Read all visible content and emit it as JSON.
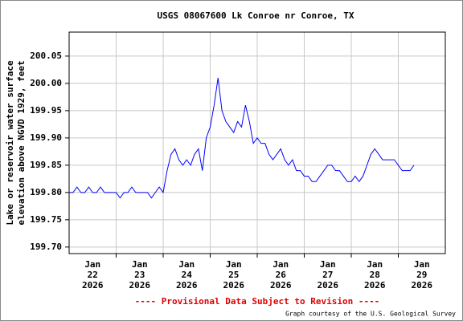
{
  "chart_data": {
    "type": "line",
    "title": "USGS 08067600 Lk Conroe nr Conroe, TX",
    "ylabel": [
      "Lake or reservoir water surface",
      "elevation above NGVD 1929, feet"
    ],
    "footer": "---- Provisional Data Subject to Revision ----",
    "credit": "Graph courtesy of the U.S. Geological Survey",
    "color": "#0000ff",
    "grid": true,
    "xlim": [
      "2026-01-22T00:00",
      "2026-01-30T00:00"
    ],
    "xticks": [
      {
        "value": "2026-01-22T12:00",
        "label": [
          "Jan",
          "22",
          "2026"
        ]
      },
      {
        "value": "2026-01-23T12:00",
        "label": [
          "Jan",
          "23",
          "2026"
        ]
      },
      {
        "value": "2026-01-24T12:00",
        "label": [
          "Jan",
          "24",
          "2026"
        ]
      },
      {
        "value": "2026-01-25T12:00",
        "label": [
          "Jan",
          "25",
          "2026"
        ]
      },
      {
        "value": "2026-01-26T12:00",
        "label": [
          "Jan",
          "26",
          "2026"
        ]
      },
      {
        "value": "2026-01-27T12:00",
        "label": [
          "Jan",
          "27",
          "2026"
        ]
      },
      {
        "value": "2026-01-28T12:00",
        "label": [
          "Jan",
          "28",
          "2026"
        ]
      },
      {
        "value": "2026-01-29T12:00",
        "label": [
          "Jan",
          "29",
          "2026"
        ]
      }
    ],
    "ylim": [
      199.688,
      200.094
    ],
    "yticks": [
      {
        "value": 199.7,
        "label": "199.70"
      },
      199.75,
      {
        "value": 199.8,
        "label": "199.80"
      },
      199.85,
      {
        "value": 199.9,
        "label": "199.90"
      },
      199.95,
      {
        "value": 200,
        "label": "200.00"
      },
      200.05
    ],
    "x": [
      "2026-01-22T00:00",
      "2026-01-22T02:00",
      "2026-01-22T04:00",
      "2026-01-22T06:00",
      "2026-01-22T08:00",
      "2026-01-22T10:00",
      "2026-01-22T12:00",
      "2026-01-22T14:00",
      "2026-01-22T16:00",
      "2026-01-22T18:00",
      "2026-01-22T20:00",
      "2026-01-22T22:00",
      "2026-01-23T00:00",
      "2026-01-23T02:00",
      "2026-01-23T04:00",
      "2026-01-23T06:00",
      "2026-01-23T08:00",
      "2026-01-23T10:00",
      "2026-01-23T12:00",
      "2026-01-23T14:00",
      "2026-01-23T16:00",
      "2026-01-23T18:00",
      "2026-01-23T20:00",
      "2026-01-23T22:00",
      "2026-01-24T00:00",
      "2026-01-24T02:00",
      "2026-01-24T04:00",
      "2026-01-24T06:00",
      "2026-01-24T08:00",
      "2026-01-24T10:00",
      "2026-01-24T12:00",
      "2026-01-24T14:00",
      "2026-01-24T16:00",
      "2026-01-24T18:00",
      "2026-01-24T20:00",
      "2026-01-24T22:00",
      "2026-01-25T00:00",
      "2026-01-25T02:00",
      "2026-01-25T04:00",
      "2026-01-25T06:00",
      "2026-01-25T08:00",
      "2026-01-25T10:00",
      "2026-01-25T12:00",
      "2026-01-25T14:00",
      "2026-01-25T16:00",
      "2026-01-25T18:00",
      "2026-01-25T20:00",
      "2026-01-25T22:00",
      "2026-01-26T00:00",
      "2026-01-26T02:00",
      "2026-01-26T04:00",
      "2026-01-26T06:00",
      "2026-01-26T08:00",
      "2026-01-26T10:00",
      "2026-01-26T12:00",
      "2026-01-26T14:00",
      "2026-01-26T16:00",
      "2026-01-26T18:00",
      "2026-01-26T20:00",
      "2026-01-26T22:00",
      "2026-01-27T00:00",
      "2026-01-27T02:00",
      "2026-01-27T04:00",
      "2026-01-27T06:00",
      "2026-01-27T08:00",
      "2026-01-27T10:00",
      "2026-01-27T12:00",
      "2026-01-27T14:00",
      "2026-01-27T16:00",
      "2026-01-27T18:00",
      "2026-01-27T20:00",
      "2026-01-27T22:00",
      "2026-01-28T00:00",
      "2026-01-28T02:00",
      "2026-01-28T04:00",
      "2026-01-28T06:00",
      "2026-01-28T08:00",
      "2026-01-28T10:00",
      "2026-01-28T12:00",
      "2026-01-28T14:00",
      "2026-01-28T16:00",
      "2026-01-28T18:00",
      "2026-01-28T20:00",
      "2026-01-28T22:00",
      "2026-01-29T00:00",
      "2026-01-29T02:00",
      "2026-01-29T04:00",
      "2026-01-29T06:00",
      "2026-01-29T08:00"
    ],
    "values": [
      199.8,
      199.8,
      199.81,
      199.8,
      199.8,
      199.81,
      199.8,
      199.8,
      199.81,
      199.8,
      199.8,
      199.8,
      199.8,
      199.79,
      199.8,
      199.8,
      199.81,
      199.8,
      199.8,
      199.8,
      199.8,
      199.79,
      199.8,
      199.81,
      199.8,
      199.84,
      199.87,
      199.88,
      199.86,
      199.85,
      199.86,
      199.85,
      199.87,
      199.88,
      199.84,
      199.9,
      199.92,
      199.96,
      200.01,
      199.95,
      199.93,
      199.92,
      199.91,
      199.93,
      199.92,
      199.96,
      199.93,
      199.89,
      199.9,
      199.89,
      199.89,
      199.87,
      199.86,
      199.87,
      199.88,
      199.86,
      199.85,
      199.86,
      199.84,
      199.84,
      199.83,
      199.83,
      199.82,
      199.82,
      199.83,
      199.84,
      199.85,
      199.85,
      199.84,
      199.84,
      199.83,
      199.82,
      199.82,
      199.83,
      199.82,
      199.83,
      199.85,
      199.87,
      199.88,
      199.87,
      199.86,
      199.86,
      199.86,
      199.86,
      199.85,
      199.84,
      199.84,
      199.84,
      199.85
    ]
  }
}
